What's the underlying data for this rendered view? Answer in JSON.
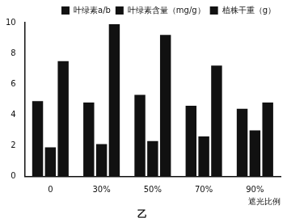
{
  "chart_data": {
    "type": "bar",
    "title": "乙",
    "x_label": "遮光比例",
    "categories": [
      "0",
      "30%",
      "50%",
      "70%",
      "90%"
    ],
    "series": [
      {
        "name": "叶绿素a/b",
        "color": "#111111",
        "values": [
          4.9,
          4.8,
          5.3,
          4.6,
          4.4
        ]
      },
      {
        "name": "叶绿素含量（mg/g）",
        "color": "#111111",
        "values": [
          1.9,
          2.1,
          2.3,
          2.6,
          3.0
        ]
      },
      {
        "name": "植株干重（g）",
        "color": "#111111",
        "values": [
          7.5,
          9.9,
          9.2,
          7.2,
          4.8
        ]
      }
    ],
    "ylim": [
      0,
      10
    ],
    "yticks": [
      0,
      2,
      4,
      6,
      8,
      10
    ],
    "grid": false,
    "legend": "top"
  }
}
